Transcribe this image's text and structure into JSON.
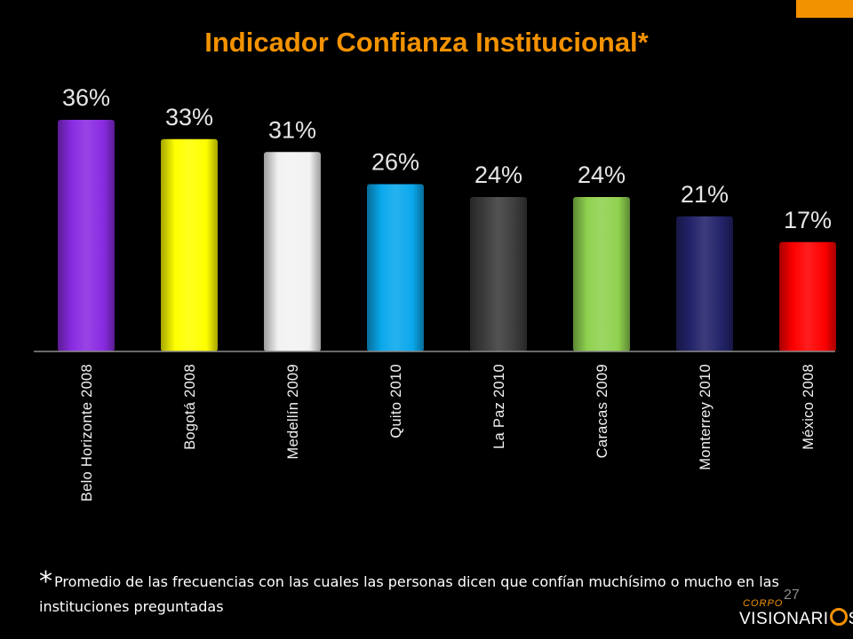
{
  "slide": {
    "footnote_mark": "*",
    "footnote_text": "Promedio de las frecuencias con  las cuales las personas dicen que confían muchísimo o mucho en las instituciones preguntadas",
    "slide_number": "27",
    "logo_line1": "CORPO",
    "logo_line2_a": "VISIONARI",
    "logo_line2_b": "S",
    "accent_color": "#f39200"
  },
  "chart_data": {
    "type": "bar",
    "title": "Indicador Confianza Institucional*",
    "categories": [
      "Belo Horizonte 2008",
      "Bogotá 2008",
      "Medellín 2009",
      "Quito 2010",
      "La Paz 2010",
      "Caracas 2009",
      "Monterrey 2010",
      "México 2008"
    ],
    "values": [
      36,
      33,
      31,
      26,
      24,
      24,
      21,
      17
    ],
    "value_labels": [
      "36%",
      "33%",
      "31%",
      "26%",
      "24%",
      "24%",
      "21%",
      "17%"
    ],
    "colors": [
      "#8a2be2",
      "#ffff00",
      "#f2f2f2",
      "#0aa8ec",
      "#3c3c3c",
      "#8fd14f",
      "#23236a",
      "#ff0000"
    ],
    "ylim": [
      0,
      40
    ],
    "grid": false,
    "legend": "none"
  }
}
